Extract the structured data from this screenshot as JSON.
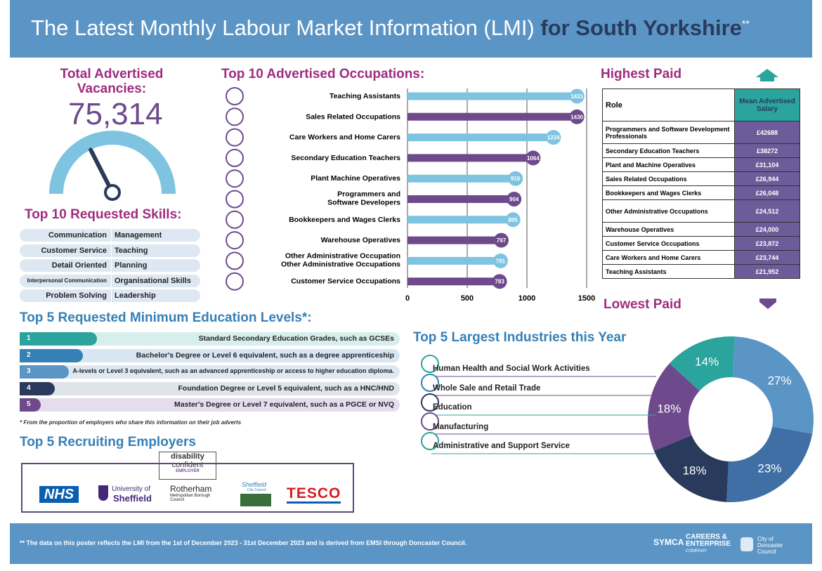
{
  "header": {
    "title_plain": "The Latest Monthly Labour Market Information (LMI) ",
    "title_bold": "for South Yorkshire",
    "title_mark": "**"
  },
  "vacancies": {
    "heading": "Total Advertised Vacancies:",
    "value": "75,314",
    "gauge_level": 0.35
  },
  "skills": {
    "heading": "Top 10 Requested Skills:",
    "rows": [
      [
        "Communication",
        "Management"
      ],
      [
        "Customer Service",
        "Teaching"
      ],
      [
        "Detail Oriented",
        "Planning"
      ],
      [
        "Interpersonal Communication",
        "Organisational Skills"
      ],
      [
        "Problem Solving",
        "Leadership"
      ]
    ]
  },
  "occupations": {
    "heading": "Top 10 Advertised Occupations:"
  },
  "chart_data": {
    "type": "bar",
    "orientation": "horizontal",
    "categories": [
      "Teaching Assistants",
      "Sales Related Occupations",
      "Care Workers and Home Carers",
      "Secondary Education Teachers",
      "Plant Machine Operatives",
      "Programmers and Software Developers",
      "Bookkeepers and Wages Clerks",
      "Warehouse Operatives",
      "Other Administrative Occupations",
      "Customer Service Occupations"
    ],
    "values": [
      1431,
      1430,
      1234,
      1064,
      916,
      904,
      895,
      797,
      791,
      783
    ],
    "xlim": [
      0,
      1500
    ],
    "xticks": [
      "0",
      "500",
      "1000",
      "1500"
    ],
    "colors": [
      "#7ec4e0",
      "#6e4a8d"
    ],
    "grid": true
  },
  "highest": {
    "heading": "Highest Paid",
    "col_role": "Role",
    "col_salary": "Mean Advertised Salary",
    "rows": [
      [
        "Programmers and Software Development Professionals",
        "£42688"
      ],
      [
        "Secondary Education Teachers",
        "£38272"
      ],
      [
        "Plant and Machine Operatives",
        "£31,104"
      ],
      [
        "Sales Related Occupations",
        "£26,944"
      ],
      [
        "Bookkeepers and Wages Clerks",
        "£26,048"
      ],
      [
        "Other Administrative Occupations",
        "£24,512"
      ],
      [
        "Warehouse Operatives",
        "£24,000"
      ],
      [
        "Customer Service Occupations",
        "£23,872"
      ],
      [
        "Care Workers and Home Carers",
        "£23,744"
      ],
      [
        "Teaching Assistants",
        "£21,952"
      ]
    ]
  },
  "lowest": {
    "heading": "Lowest Paid"
  },
  "education": {
    "heading": "Top 5 Requested Minimum Education Levels*:",
    "rows": [
      [
        "1",
        "Standard Secondary Education Grades, such as GCSEs"
      ],
      [
        "2",
        "Bachelor's Degree or Level 6 equivalent, such as a degree apprenticeship"
      ],
      [
        "3",
        "A-levels or Level 3 equivalent, such as an advanced apprenticeship or access to higher education diploma."
      ],
      [
        "4",
        "Foundation Degree or Level 5 equivalent, such as a HNC/HND"
      ],
      [
        "5",
        "Master's Degree or Level 7 equivalent, such as a PGCE or NVQ"
      ]
    ],
    "note": "* From the proportion of employers who share this information on their job adverts"
  },
  "employers": {
    "heading": "Top 5 Recruiting Employers",
    "badge1": "disability",
    "badge2": "confident",
    "badge3": "EMPLOYER",
    "nhs": "NHS",
    "uos1": "University of",
    "uos2": "Sheffield",
    "roth1": "Rotherham",
    "roth2": "Metropolitan Borough Council",
    "shef1": "Sheffield",
    "shef2": "City Council",
    "tesco": "TESCO"
  },
  "industries": {
    "heading": "Top 5 Largest Industries this Year",
    "items": [
      "Human Health and Social Work Activities",
      "Whole Sale and Retail Trade",
      "Education",
      "Manufacturing",
      "Administrative and Support Service"
    ],
    "pcts": [
      "27%",
      "23%",
      "18%",
      "18%",
      "14%"
    ]
  },
  "footer": {
    "text": "**  The data on this poster reflects the LMI from the 1st of December 2023 - 31st December 2023 and is derived from EMSI through Doncaster Council.",
    "logo1": "SYMCA",
    "logo2a": "CAREERS &",
    "logo2b": "ENTERPRISE",
    "logo2c": "COMPANY",
    "logo3a": "City of",
    "logo3b": "Doncaster",
    "logo3c": "Council"
  }
}
